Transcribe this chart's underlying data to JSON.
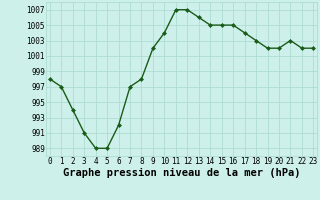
{
  "x": [
    0,
    1,
    2,
    3,
    4,
    5,
    6,
    7,
    8,
    9,
    10,
    11,
    12,
    13,
    14,
    15,
    16,
    17,
    18,
    19,
    20,
    21,
    22,
    23
  ],
  "y": [
    998.0,
    997.0,
    994.0,
    991.0,
    989.0,
    989.0,
    992.0,
    997.0,
    998.0,
    1002.0,
    1004.0,
    1007.0,
    1007.0,
    1006.0,
    1005.0,
    1005.0,
    1005.0,
    1004.0,
    1003.0,
    1002.0,
    1002.0,
    1003.0,
    1002.0,
    1002.0
  ],
  "line_color": "#1a5c1a",
  "marker": "D",
  "marker_size": 2.0,
  "bg_color": "#cef0ea",
  "grid_color": "#aad8d0",
  "xlabel": "Graphe pression niveau de la mer (hPa)",
  "xlabel_fontsize": 7.5,
  "xlabel_bold": true,
  "yticks": [
    989,
    991,
    993,
    995,
    997,
    999,
    1001,
    1003,
    1005,
    1007
  ],
  "xtick_labels": [
    "0",
    "1",
    "2",
    "3",
    "4",
    "5",
    "6",
    "7",
    "8",
    "9",
    "10",
    "11",
    "12",
    "13",
    "14",
    "15",
    "16",
    "17",
    "18",
    "19",
    "20",
    "21",
    "22",
    "23"
  ],
  "xticks": [
    0,
    1,
    2,
    3,
    4,
    5,
    6,
    7,
    8,
    9,
    10,
    11,
    12,
    13,
    14,
    15,
    16,
    17,
    18,
    19,
    20,
    21,
    22,
    23
  ],
  "ylim": [
    988,
    1008
  ],
  "xlim": [
    -0.3,
    23.3
  ],
  "tick_fontsize": 5.5,
  "linewidth": 1.0
}
